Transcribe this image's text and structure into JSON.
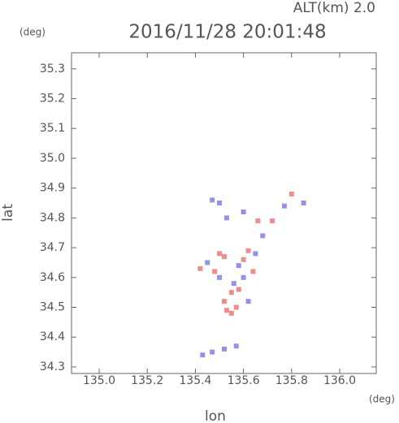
{
  "chart_data": {
    "type": "scatter",
    "title": "2016/11/28 20:01:48",
    "subtitle": "ALT(km) 2.0",
    "y_unit": "(deg)",
    "x_unit": "(deg)",
    "xlabel": "lon",
    "ylabel": "lat",
    "xlim": [
      134.885,
      136.152
    ],
    "ylim": [
      34.278,
      35.354
    ],
    "xticks": [
      {
        "value": 135,
        "label": "135.0"
      },
      135.2,
      135.4,
      135.6,
      135.8,
      {
        "value": 136,
        "label": "136.0"
      }
    ],
    "yticks": [
      34.3,
      34.4,
      34.5,
      34.6,
      34.7,
      34.8,
      34.9,
      {
        "value": 35,
        "label": "35.0"
      },
      35.1,
      35.2,
      35.3
    ],
    "series": [
      {
        "color": "#e87070",
        "x": [
          135.5,
          135.52,
          135.6,
          135.62,
          135.55,
          135.52,
          135.53,
          135.57,
          135.58,
          135.8,
          135.66,
          135.72,
          135.42,
          135.48,
          135.55,
          135.64
        ],
        "values": [
          34.68,
          34.67,
          34.66,
          34.69,
          34.55,
          34.52,
          34.49,
          34.5,
          34.56,
          34.88,
          34.79,
          34.79,
          34.63,
          34.62,
          34.48,
          34.62
        ]
      },
      {
        "color": "#7878e0",
        "x": [
          135.47,
          135.5,
          135.53,
          135.6,
          135.56,
          135.6,
          135.58,
          135.5,
          135.45,
          135.65,
          135.43,
          135.47,
          135.52,
          135.57,
          135.85,
          135.62,
          135.68,
          135.77
        ],
        "values": [
          34.86,
          34.85,
          34.8,
          34.82,
          34.58,
          34.6,
          34.64,
          34.6,
          34.65,
          34.68,
          34.34,
          34.35,
          34.36,
          34.37,
          34.85,
          34.52,
          34.74,
          34.84
        ]
      }
    ]
  }
}
